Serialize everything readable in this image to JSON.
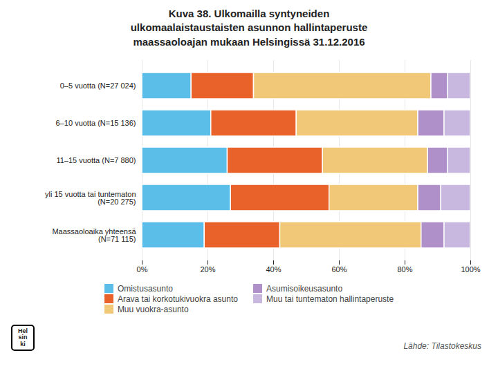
{
  "chart_data": {
    "type": "bar",
    "orientation": "horizontal",
    "stacked": true,
    "title": "Kuva 38. Ulkomailla syntyneiden\nulkomaalaistaustaisten asunnon hallintaperuste\nmaassaoloajan mukaan Helsingissä 31.12.2016",
    "categories": [
      "Maassaoloaika yhteensä\n(N=71 115)",
      "yli 15 vuotta tai tuntematon\n(N=20 275)",
      "11–15 vuotta (N=7 880)",
      "6–10 vuotta (N=15 136)",
      "0–5 vuotta (N=27 024)"
    ],
    "series": [
      {
        "name": "Omistusasunto",
        "color": "#5BBEE8",
        "values": [
          19,
          27,
          26,
          21,
          15
        ]
      },
      {
        "name": "Arava tai korkotukivuokra asunto",
        "color": "#E8622A",
        "values": [
          23,
          30,
          29,
          26,
          19
        ]
      },
      {
        "name": "Muu vuokra-asunto",
        "color": "#F0C878",
        "values": [
          43,
          27,
          32,
          37,
          54
        ]
      },
      {
        "name": "Asumisoikeusasunto",
        "color": "#B090C8",
        "values": [
          7,
          7,
          6,
          8,
          5
        ]
      },
      {
        "name": "Muu tai tuntematon hallintaperuste",
        "color": "#C8B8E0",
        "values": [
          8,
          9,
          7,
          8,
          7
        ]
      }
    ],
    "xlim": [
      0,
      100
    ],
    "xticks": [
      {
        "value": 0,
        "label": "0%"
      },
      {
        "value": 20,
        "label": "20%"
      },
      {
        "value": 40,
        "label": "40%"
      },
      {
        "value": 60,
        "label": "60%"
      },
      {
        "value": 80,
        "label": "80%"
      },
      {
        "value": 100,
        "label": "100%"
      }
    ],
    "grid": true,
    "legend": "bottom",
    "annotations": [
      "Lähde: Tilastokeskus",
      "Hel\nsin\nki"
    ]
  }
}
